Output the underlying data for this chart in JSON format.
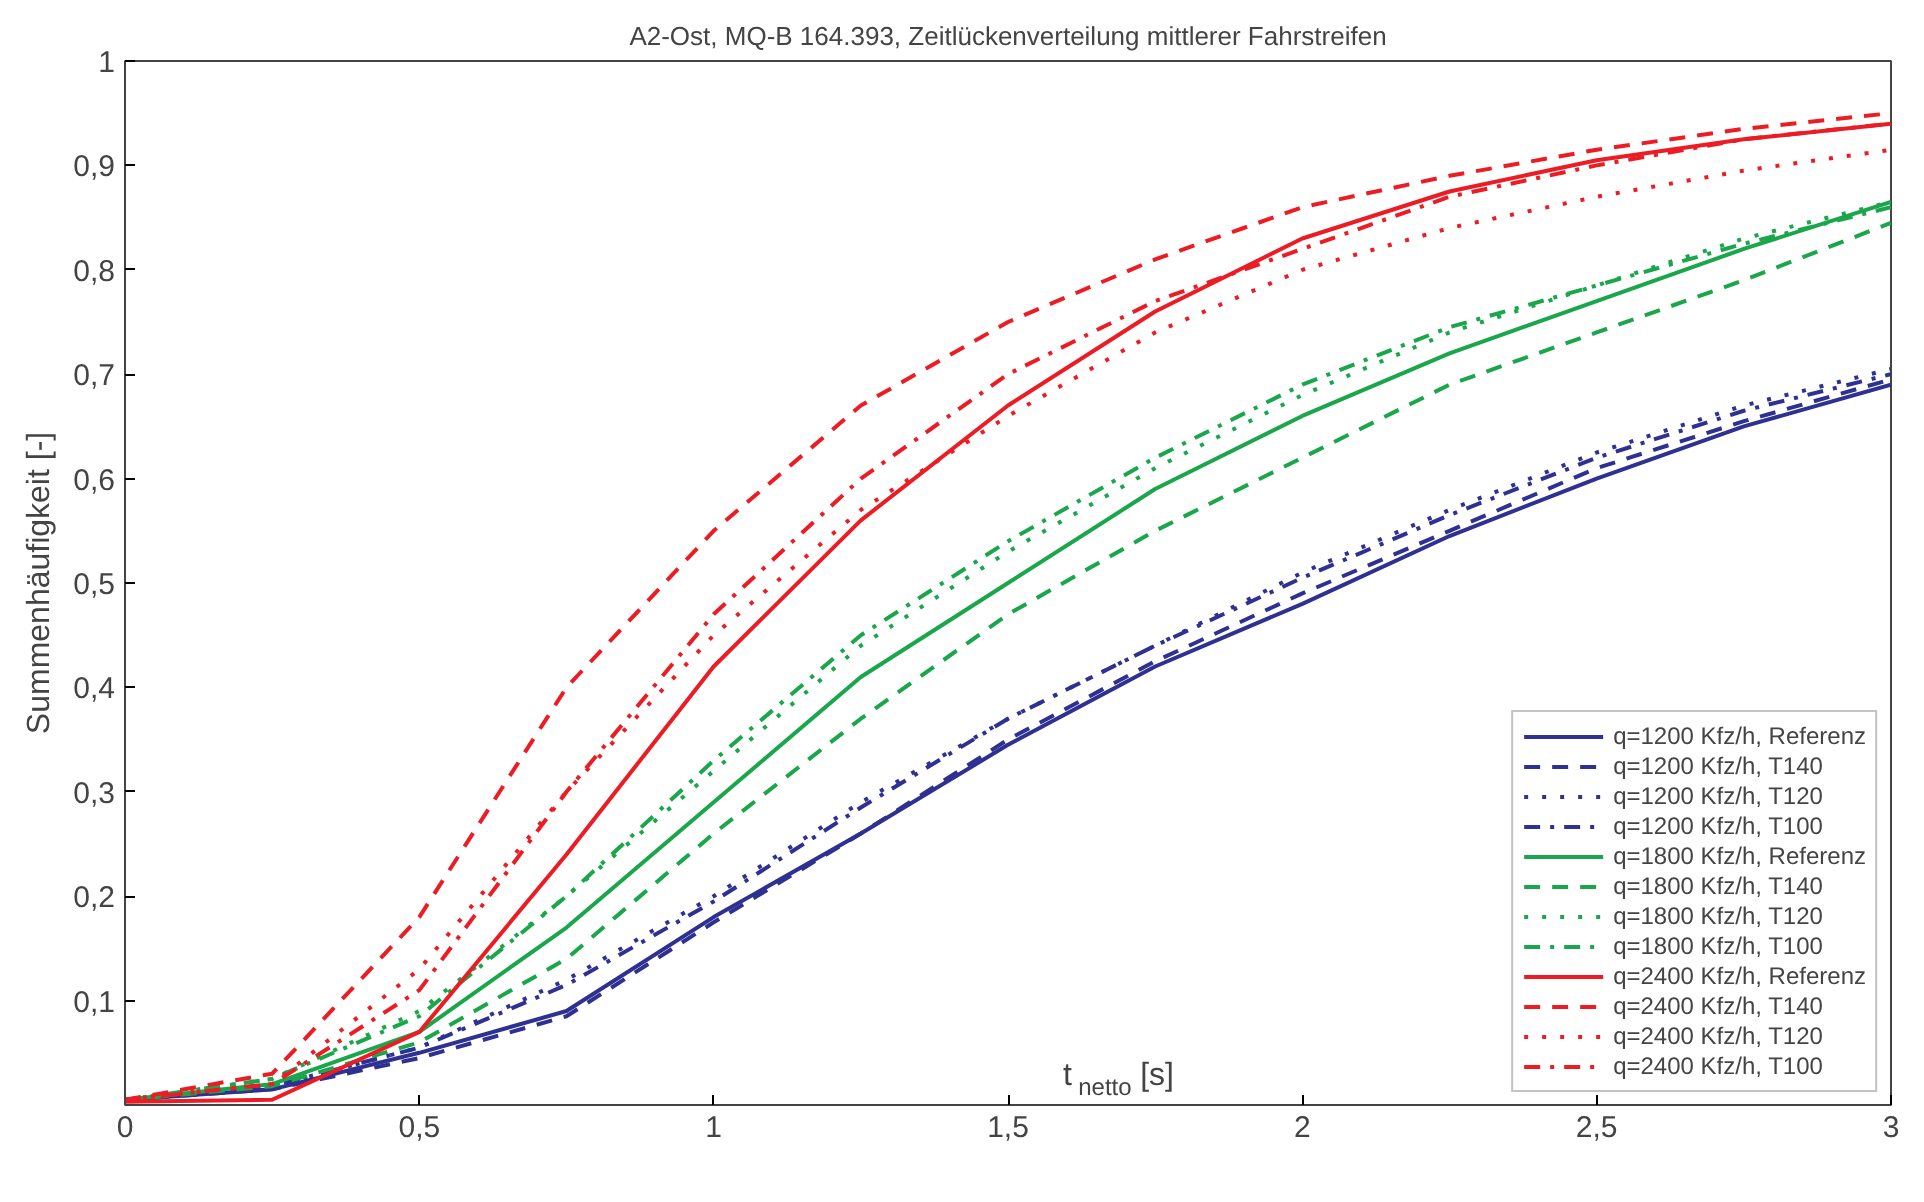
{
  "chart_data": {
    "type": "line",
    "title": "A2-Ost, MQ-B 164.393, Zeitlückenverteilung mittlerer Fahrstreifen",
    "xlabel": "t$_{netto}$ [s]",
    "ylabel": "Summenhäufigkeit [-]",
    "x": [
      0,
      0.25,
      0.5,
      0.75,
      1,
      1.25,
      1.5,
      1.75,
      2,
      2.25,
      2.5,
      2.75,
      3
    ],
    "xlim": [
      0,
      3
    ],
    "ylim": [
      0,
      1
    ],
    "xticks": [
      0,
      {
        "value": 0.5,
        "label": "0,5"
      },
      1,
      {
        "value": 1.5,
        "label": "1,5"
      },
      2,
      {
        "value": 2.5,
        "label": "2,5"
      },
      3
    ],
    "yticks": [
      {
        "value": 0.1,
        "label": "0,1"
      },
      {
        "value": 0.2,
        "label": "0,2"
      },
      {
        "value": 0.3,
        "label": "0,3"
      },
      {
        "value": 0.4,
        "label": "0,4"
      },
      {
        "value": 0.5,
        "label": "0,5"
      },
      {
        "value": 0.6,
        "label": "0,6"
      },
      {
        "value": 0.7,
        "label": "0,7"
      },
      {
        "value": 0.8,
        "label": "0,8"
      },
      {
        "value": 0.9,
        "label": "0,9"
      },
      1
    ],
    "grid": false,
    "legend": "bottom right",
    "marker": "none",
    "series": [
      {
        "name": "q=1200 Kfz/h, Referenz",
        "color": "#2e3192",
        "line_style": "solid",
        "values": [
          0.005,
          0.015,
          0.05,
          0.09,
          0.18,
          0.26,
          0.345,
          0.42,
          0.48,
          0.545,
          0.6,
          0.65,
          0.69
        ]
      },
      {
        "name": "q=1200 Kfz/h, T140",
        "color": "#2e3192",
        "line_style": "dashed",
        "values": [
          0.005,
          0.015,
          0.045,
          0.085,
          0.175,
          0.26,
          0.35,
          0.425,
          0.49,
          0.55,
          0.61,
          0.655,
          0.695
        ]
      },
      {
        "name": "q=1200 Kfz/h, T120",
        "color": "#2e3192",
        "line_style": "dotted",
        "values": [
          0.005,
          0.018,
          0.055,
          0.12,
          0.2,
          0.29,
          0.37,
          0.44,
          0.51,
          0.57,
          0.625,
          0.67,
          0.705
        ]
      },
      {
        "name": "q=1200 Kfz/h, T100",
        "color": "#2e3192",
        "line_style": "dashdot",
        "values": [
          0.005,
          0.018,
          0.055,
          0.115,
          0.195,
          0.285,
          0.37,
          0.44,
          0.505,
          0.565,
          0.62,
          0.665,
          0.7
        ]
      },
      {
        "name": "q=1800 Kfz/h, Referenz",
        "color": "#1aa64a",
        "line_style": "solid",
        "values": [
          0.005,
          0.02,
          0.07,
          0.17,
          0.29,
          0.41,
          0.5,
          0.59,
          0.66,
          0.72,
          0.77,
          0.82,
          0.865
        ]
      },
      {
        "name": "q=1800 Kfz/h, T140",
        "color": "#1aa64a",
        "line_style": "dashed",
        "values": [
          0.005,
          0.018,
          0.06,
          0.14,
          0.26,
          0.37,
          0.47,
          0.55,
          0.62,
          0.69,
          0.74,
          0.79,
          0.845
        ]
      },
      {
        "name": "q=1800 Kfz/h, T120",
        "color": "#1aa64a",
        "line_style": "dotted",
        "values": [
          0.005,
          0.025,
          0.09,
          0.2,
          0.32,
          0.44,
          0.53,
          0.61,
          0.68,
          0.74,
          0.785,
          0.83,
          0.865
        ]
      },
      {
        "name": "q=1800 Kfz/h, T100",
        "color": "#1aa64a",
        "line_style": "dashdot",
        "values": [
          0.005,
          0.025,
          0.085,
          0.2,
          0.33,
          0.45,
          0.54,
          0.62,
          0.69,
          0.745,
          0.785,
          0.825,
          0.86
        ]
      },
      {
        "name": "q=2400 Kfz/h, Referenz",
        "color": "#ed1c24",
        "line_style": "solid",
        "values": [
          0.003,
          0.005,
          0.07,
          0.24,
          0.42,
          0.56,
          0.67,
          0.76,
          0.83,
          0.875,
          0.905,
          0.925,
          0.94
        ]
      },
      {
        "name": "q=2400 Kfz/h, T140",
        "color": "#ed1c24",
        "line_style": "dashed",
        "values": [
          0.005,
          0.03,
          0.18,
          0.4,
          0.55,
          0.67,
          0.75,
          0.81,
          0.86,
          0.89,
          0.915,
          0.935,
          0.95
        ]
      },
      {
        "name": "q=2400 Kfz/h, T120",
        "color": "#ed1c24",
        "line_style": "dotted",
        "values": [
          0.005,
          0.02,
          0.13,
          0.3,
          0.45,
          0.57,
          0.66,
          0.74,
          0.8,
          0.84,
          0.87,
          0.895,
          0.915
        ]
      },
      {
        "name": "q=2400 Kfz/h, T100",
        "color": "#ed1c24",
        "line_style": "dashdot",
        "values": [
          0.005,
          0.02,
          0.11,
          0.3,
          0.47,
          0.6,
          0.7,
          0.77,
          0.82,
          0.87,
          0.9,
          0.925,
          0.94
        ]
      }
    ]
  }
}
